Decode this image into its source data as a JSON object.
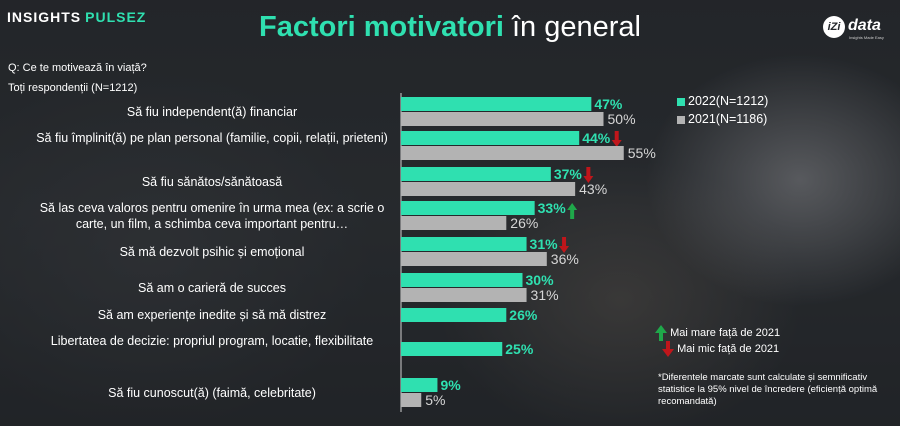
{
  "logo_left": {
    "part1": "INSIGHTS",
    "part2": "PULSEZ"
  },
  "title": {
    "bold": "Factori motivatori",
    "rest": "în general"
  },
  "logo_right": {
    "mark": "iZi",
    "word": "data",
    "tagline": "Insights Made Easy"
  },
  "question": "Q: Ce te motivează în viață?",
  "sample": "Toți respondenții (N=1212)",
  "colors": {
    "series_2022": "#2fe0b0",
    "series_2021": "#b3b3b3",
    "up": "#1fa84a",
    "down": "#c0161b"
  },
  "chart_data": {
    "type": "bar",
    "orientation": "horizontal",
    "categories": [
      "Să fiu independent(ă) financiar",
      "Să fiu împlinit(ă) pe plan personal (familie, copii, relații, prieteni)",
      "Să fiu sănătos/sănătoasă",
      "Să las ceva valoros pentru omenire în urma mea (ex: a scrie o carte, un film, a schimba ceva important pentru…",
      "Să mă dezvolt psihic și emoțional",
      "Să am o carieră de succes",
      "Să am experiențe inedite și să mă distrez",
      "Libertatea de decizie: propriul program, locatie, flexibilitate",
      "Să fiu cunoscut(ă) (faimă, celebritate)"
    ],
    "series": [
      {
        "name": "2022(N=1212)",
        "values": [
          47,
          44,
          37,
          33,
          31,
          30,
          26,
          25,
          9
        ]
      },
      {
        "name": "2021(N=1186)",
        "values": [
          50,
          55,
          43,
          26,
          36,
          31,
          null,
          null,
          5
        ]
      }
    ],
    "value_suffix": "%",
    "significance": [
      null,
      "down",
      "down",
      "up",
      "down",
      null,
      null,
      null,
      null
    ]
  },
  "sig_legend": {
    "up": "Mai mare față de 2021",
    "down": "Mai mic față de 2021"
  },
  "footnote": "*Diferentele marcate sunt calculate și semnificativ statistice la 95% nivel de încredere (eficiență optimă recomandată)"
}
